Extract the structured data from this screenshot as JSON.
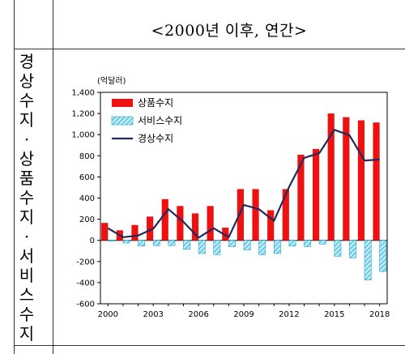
{
  "header": {
    "title": "<2000년 이후, 연간>"
  },
  "row_label": [
    "경",
    "상",
    "수",
    "지",
    "·",
    "상",
    "품",
    "수",
    "지",
    "·",
    "서",
    "비",
    "스",
    "수",
    "지"
  ],
  "colors": {
    "goods": "#ee1111",
    "services_fill": "#7fd3e8",
    "services_stroke": "#19a7cf",
    "current": "#1f2a5a"
  },
  "chart_data": {
    "type": "bar",
    "unit_label": "(억달러)",
    "x": [
      2000,
      2001,
      2002,
      2003,
      2004,
      2005,
      2006,
      2007,
      2008,
      2009,
      2010,
      2011,
      2012,
      2013,
      2014,
      2015,
      2016,
      2017,
      2018
    ],
    "x_tick_labels": [
      "2000",
      "2003",
      "2006",
      "2009",
      "2012",
      "2015",
      "2018"
    ],
    "ylim": [
      -600,
      1400
    ],
    "y_ticks": [
      -600,
      -400,
      -200,
      0,
      200,
      400,
      600,
      800,
      1000,
      1200,
      1400
    ],
    "y_tick_labels": [
      "-600",
      "-400",
      "-200",
      "0",
      "200",
      "400",
      "600",
      "800",
      "1,000",
      "1,200",
      "1,400"
    ],
    "legend_position": "top-left",
    "series": [
      {
        "name": "상품수지",
        "kind": "bar",
        "values": [
          165,
          95,
          145,
          225,
          390,
          325,
          255,
          325,
          120,
          485,
          485,
          285,
          485,
          810,
          865,
          1200,
          1165,
          1135,
          1115
        ]
      },
      {
        "name": "서비스수지",
        "kind": "bar-hatched",
        "values": [
          -5,
          -25,
          -55,
          -50,
          -50,
          -85,
          -125,
          -135,
          -60,
          -90,
          -135,
          -125,
          -55,
          -60,
          -35,
          -150,
          -165,
          -375,
          -295
        ]
      },
      {
        "name": "경상수지",
        "kind": "line",
        "values": [
          115,
          30,
          45,
          110,
          295,
          175,
          25,
          115,
          30,
          335,
          295,
          185,
          505,
          780,
          825,
          1045,
          995,
          755,
          765
        ]
      }
    ]
  }
}
